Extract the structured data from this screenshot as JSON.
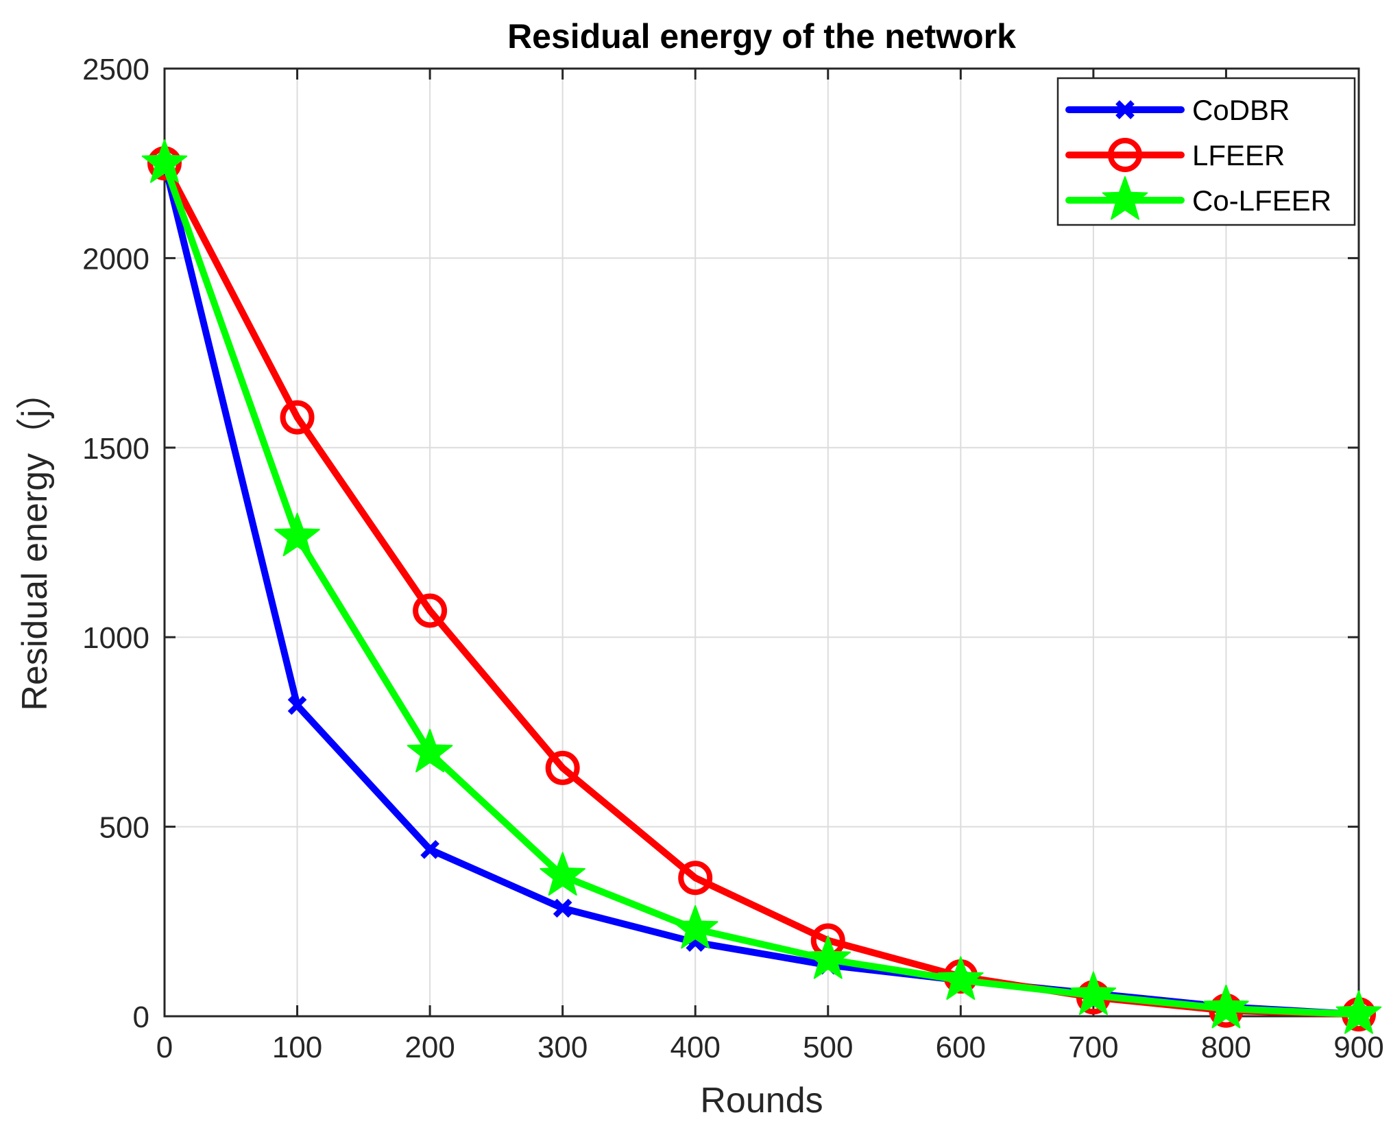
{
  "chart_data": {
    "type": "line",
    "title": "Residual energy of the network",
    "xlabel": "Rounds",
    "ylabel": "Residual energy（j）",
    "xlim": [
      0,
      900
    ],
    "ylim": [
      0,
      2500
    ],
    "xticks": [
      0,
      100,
      200,
      300,
      400,
      500,
      600,
      700,
      800,
      900
    ],
    "yticks": [
      0,
      500,
      1000,
      1500,
      2000,
      2500
    ],
    "grid": true,
    "legend_position": "top-right",
    "x": [
      0,
      100,
      200,
      300,
      400,
      500,
      600,
      700,
      800,
      900
    ],
    "series": [
      {
        "name": "CoDBR",
        "color": "#0000ff",
        "marker": "x-diamond",
        "values": [
          2250,
          820,
          440,
          285,
          195,
          135,
          95,
          60,
          25,
          5
        ]
      },
      {
        "name": "LFEER",
        "color": "#ff0000",
        "marker": "circle",
        "values": [
          2250,
          1580,
          1070,
          655,
          365,
          200,
          105,
          50,
          15,
          5
        ]
      },
      {
        "name": "Co-LFEER",
        "color": "#00ff00",
        "marker": "star",
        "values": [
          2250,
          1265,
          695,
          370,
          230,
          150,
          95,
          55,
          20,
          5
        ]
      }
    ]
  }
}
